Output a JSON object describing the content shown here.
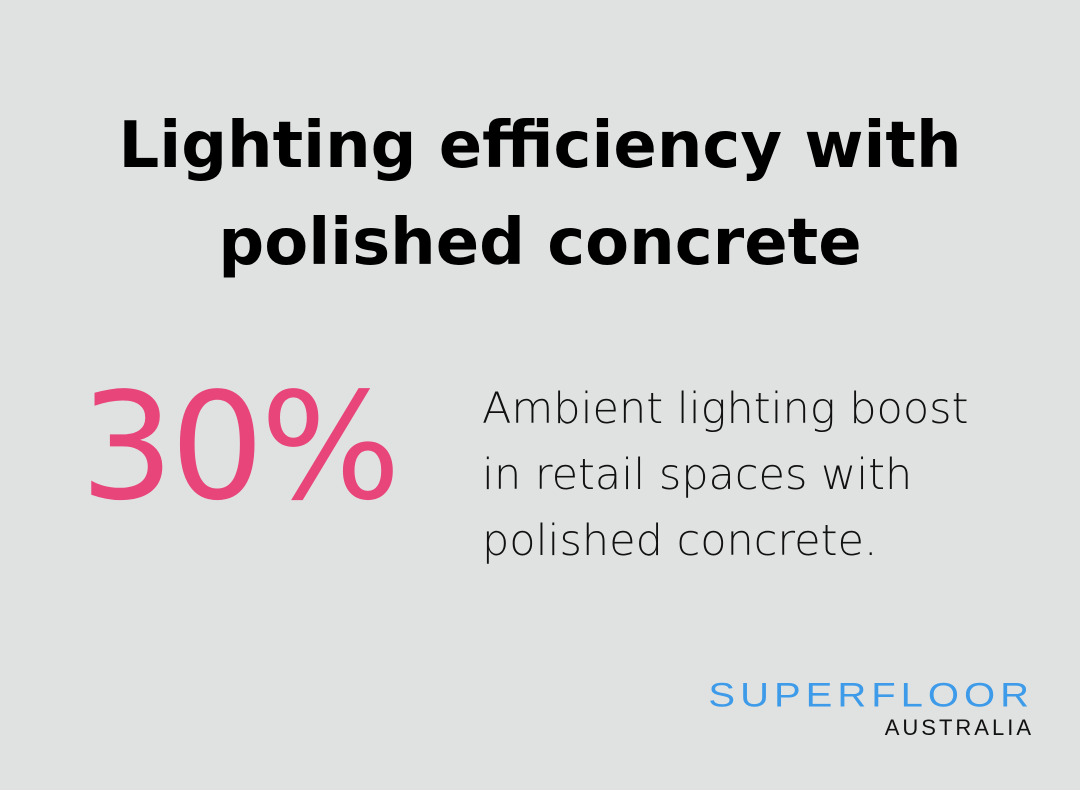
{
  "title": {
    "line1": "Lighting efficiency with",
    "line2": "polished concrete"
  },
  "stat": {
    "value": "30%",
    "color": "#e8457a"
  },
  "description": {
    "line1": "Ambient lighting boost",
    "line2": "in retail spaces with",
    "line3": "polished concrete."
  },
  "logo": {
    "name": "SUPERFLOOR",
    "subtitle": "AUSTRALIA",
    "color": "#3d9be9"
  }
}
